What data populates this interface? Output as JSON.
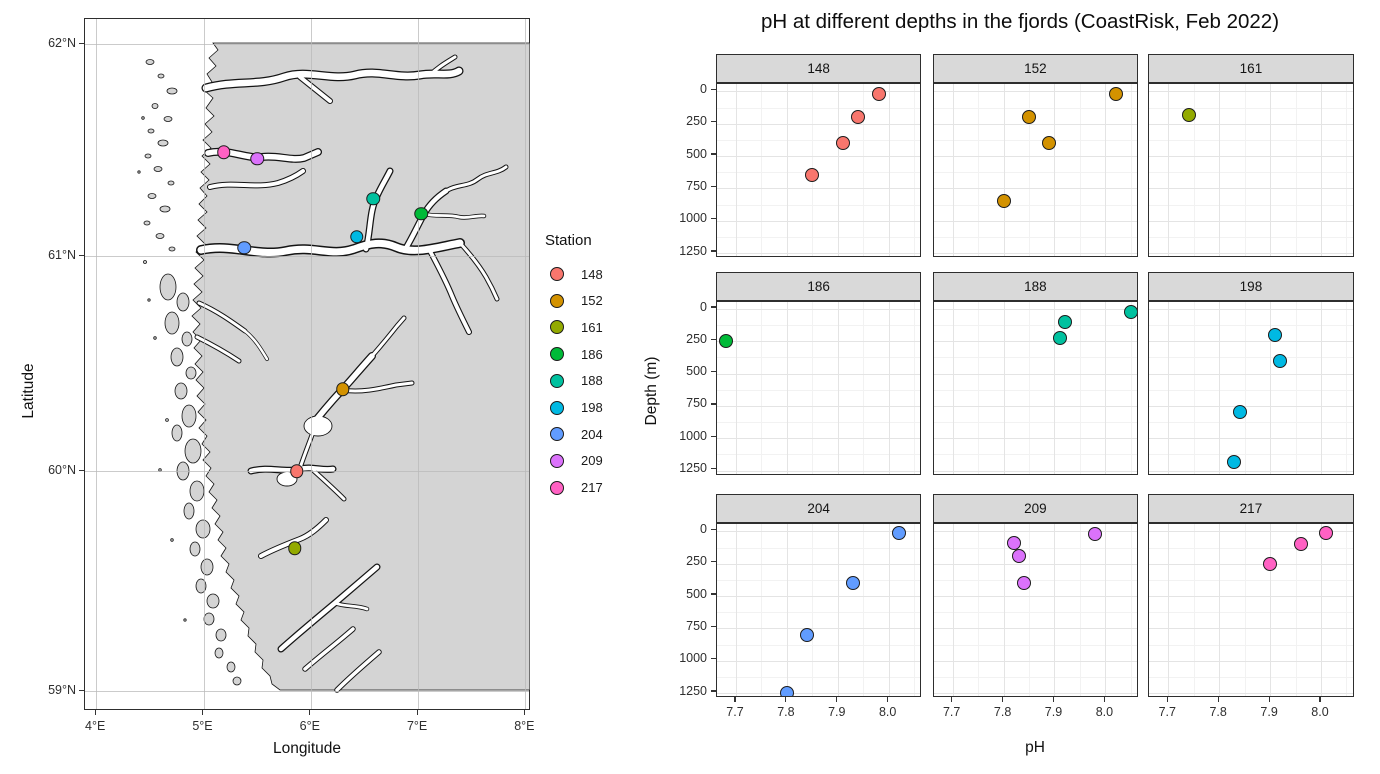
{
  "chart_data": [
    {
      "type": "map-scatter",
      "xlabel": "Longitude",
      "ylabel": "Latitude",
      "x_ticks": [
        "4°E",
        "5°E",
        "6°E",
        "7°E",
        "8°E"
      ],
      "x_tick_lons": [
        4,
        5,
        6,
        7,
        8
      ],
      "y_ticks": [
        "62°N",
        "61°N",
        "60°N",
        "59°N"
      ],
      "y_tick_lats": [
        62,
        61,
        60,
        59
      ],
      "legend_title": "Station",
      "land_color": "#d4d4d4",
      "sea_color": "#ffffff",
      "stations": [
        {
          "station": "148",
          "color": "#F8766D",
          "lon": 5.87,
          "lat": 60.0
        },
        {
          "station": "152",
          "color": "#D39200",
          "lon": 6.3,
          "lat": 60.38
        },
        {
          "station": "161",
          "color": "#93AA00",
          "lon": 5.85,
          "lat": 59.65
        },
        {
          "station": "186",
          "color": "#00BA38",
          "lon": 7.03,
          "lat": 61.2
        },
        {
          "station": "188",
          "color": "#00C19F",
          "lon": 6.58,
          "lat": 61.27
        },
        {
          "station": "198",
          "color": "#00B9E3",
          "lon": 6.43,
          "lat": 61.09
        },
        {
          "station": "204",
          "color": "#619CFF",
          "lon": 5.38,
          "lat": 61.04
        },
        {
          "station": "209",
          "color": "#DB72FB",
          "lon": 5.5,
          "lat": 61.46
        },
        {
          "station": "217",
          "color": "#FF61C3",
          "lon": 5.19,
          "lat": 61.49
        }
      ]
    },
    {
      "type": "scatter",
      "title": "pH at different depths in the fjords (CoastRisk, Feb 2022)",
      "xlabel": "pH",
      "ylabel": "Depth (m)",
      "x_ticks": [
        7.7,
        7.8,
        7.9,
        8.0
      ],
      "y_ticks": [
        0,
        250,
        500,
        750,
        1000,
        1250
      ],
      "xlim": [
        7.66,
        8.07
      ],
      "ylim": [
        0,
        1250
      ],
      "y_reversed": true,
      "grid": true,
      "legend_position": "none",
      "facet_layout": "3x3",
      "facets": [
        {
          "station": "148",
          "color": "#F8766D",
          "points": [
            {
              "ph": 7.98,
              "depth": 20
            },
            {
              "ph": 7.94,
              "depth": 200
            },
            {
              "ph": 7.91,
              "depth": 400
            },
            {
              "ph": 7.85,
              "depth": 650
            }
          ]
        },
        {
          "station": "152",
          "color": "#D39200",
          "points": [
            {
              "ph": 8.02,
              "depth": 20
            },
            {
              "ph": 7.85,
              "depth": 200
            },
            {
              "ph": 7.89,
              "depth": 400
            },
            {
              "ph": 7.8,
              "depth": 850
            }
          ]
        },
        {
          "station": "161",
          "color": "#93AA00",
          "points": [
            {
              "ph": 7.74,
              "depth": 180
            }
          ]
        },
        {
          "station": "186",
          "color": "#00BA38",
          "points": [
            {
              "ph": 7.68,
              "depth": 250
            }
          ]
        },
        {
          "station": "188",
          "color": "#00C19F",
          "points": [
            {
              "ph": 8.05,
              "depth": 20
            },
            {
              "ph": 7.92,
              "depth": 100
            },
            {
              "ph": 7.91,
              "depth": 225
            }
          ]
        },
        {
          "station": "198",
          "color": "#00B9E3",
          "points": [
            {
              "ph": 7.91,
              "depth": 200
            },
            {
              "ph": 7.92,
              "depth": 400
            },
            {
              "ph": 7.84,
              "depth": 800
            },
            {
              "ph": 7.83,
              "depth": 1180
            }
          ]
        },
        {
          "station": "204",
          "color": "#619CFF",
          "points": [
            {
              "ph": 8.02,
              "depth": 10
            },
            {
              "ph": 7.93,
              "depth": 400
            },
            {
              "ph": 7.84,
              "depth": 800
            },
            {
              "ph": 7.8,
              "depth": 1250
            }
          ]
        },
        {
          "station": "209",
          "color": "#DB72FB",
          "points": [
            {
              "ph": 7.98,
              "depth": 20
            },
            {
              "ph": 7.82,
              "depth": 90
            },
            {
              "ph": 7.83,
              "depth": 190
            },
            {
              "ph": 7.84,
              "depth": 400
            }
          ]
        },
        {
          "station": "217",
          "color": "#FF61C3",
          "points": [
            {
              "ph": 8.01,
              "depth": 10
            },
            {
              "ph": 7.96,
              "depth": 100
            },
            {
              "ph": 7.9,
              "depth": 250
            }
          ]
        }
      ]
    }
  ]
}
